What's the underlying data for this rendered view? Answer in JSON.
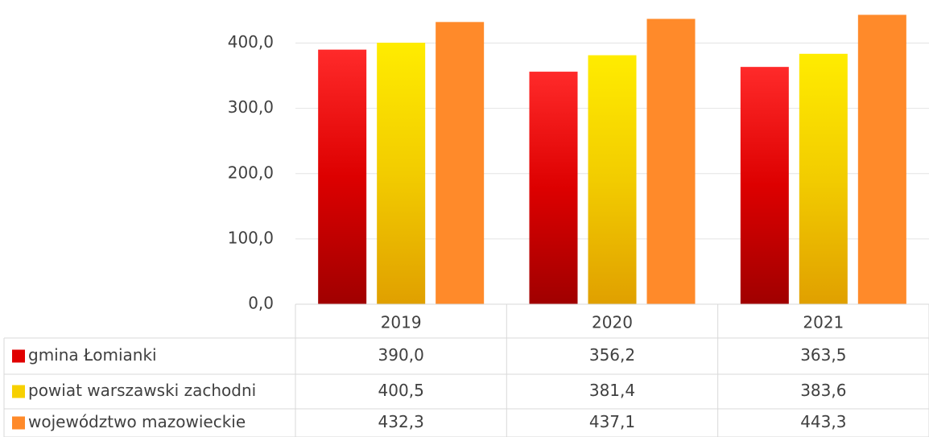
{
  "chart_data": {
    "type": "bar",
    "categories": [
      "2019",
      "2020",
      "2021"
    ],
    "series": [
      {
        "name": "gmina Łomianki",
        "color": "#e00000",
        "values": [
          390.0,
          356.2,
          363.5
        ],
        "value_labels": [
          "390,0",
          "356,2",
          "363,5"
        ]
      },
      {
        "name": "powiat warszawski zachodni",
        "color": "#f7d000",
        "values": [
          400.5,
          381.4,
          383.6
        ],
        "value_labels": [
          "400,5",
          "381,4",
          "383,6"
        ]
      },
      {
        "name": "województwo mazowieckie",
        "color": "#ff8a2a",
        "values": [
          432.3,
          437.1,
          443.3
        ],
        "value_labels": [
          "432,3",
          "437,1",
          "443,3"
        ]
      }
    ],
    "ylim": [
      0,
      466
    ],
    "yticks": [
      {
        "value": 0,
        "label": "0,0"
      },
      {
        "value": 100,
        "label": "100,0"
      },
      {
        "value": 200,
        "label": "200,0"
      },
      {
        "value": 300,
        "label": "300,0"
      },
      {
        "value": 400,
        "label": "400,0"
      }
    ],
    "grid": true
  }
}
